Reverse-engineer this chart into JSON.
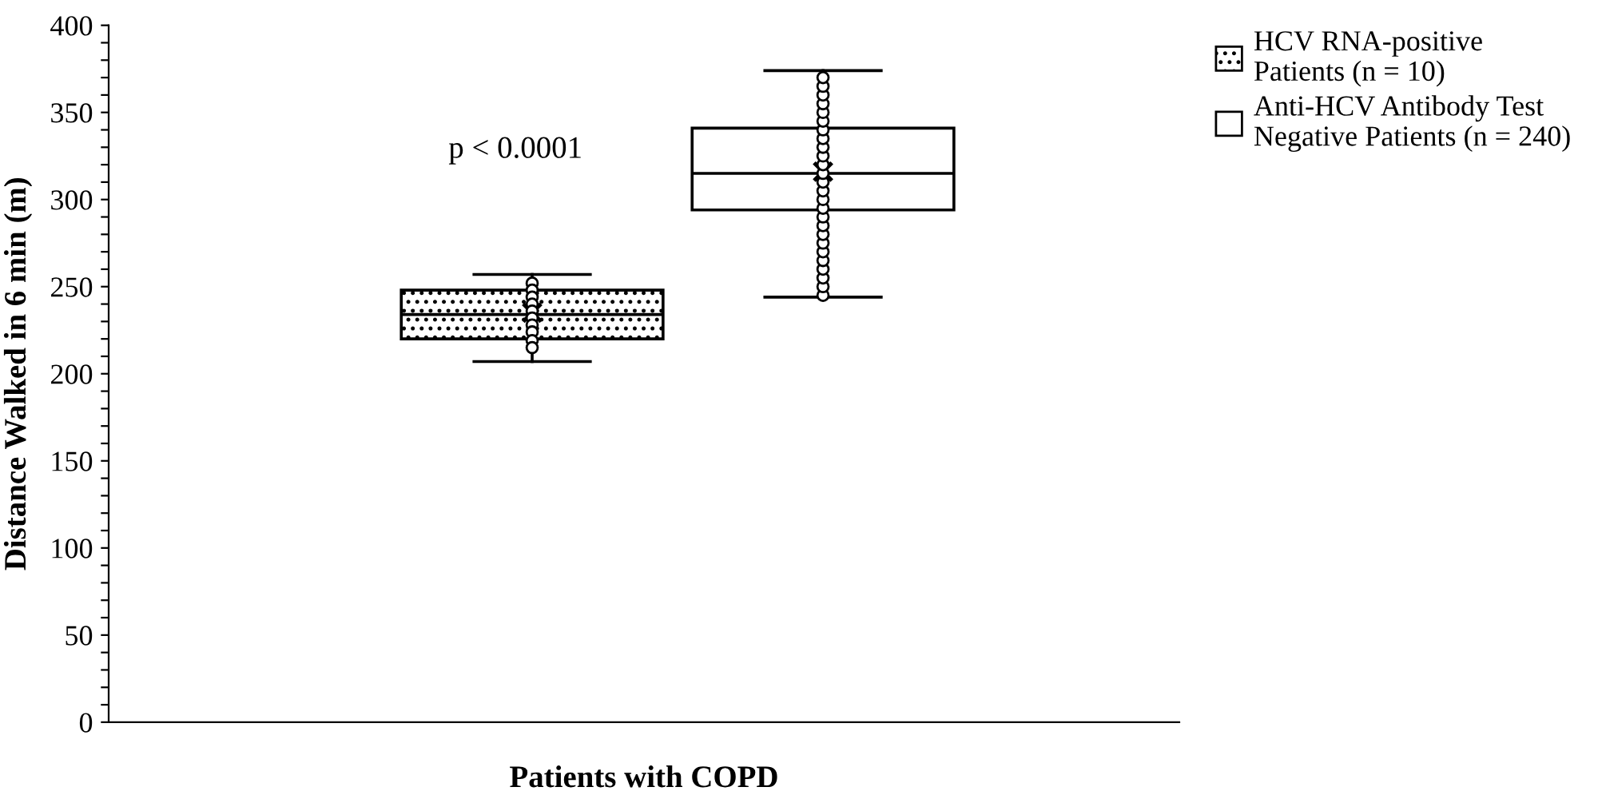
{
  "chart_data": {
    "type": "box",
    "xlabel": "Patients with COPD",
    "ylabel": "Distance Walked in 6 min (m)",
    "categories": [
      null
    ],
    "series": [
      {
        "name": "HCV RNA-positive\nPatients (n = 10)",
        "color": "#000000",
        "boxes": [
          {
            "low": 207,
            "q1": 220,
            "median": 234,
            "q3": 248,
            "high": 257,
            "mean": 235,
            "outliers": [
              252,
              248,
              244,
              240,
              236,
              232,
              228,
              224,
              219,
              215
            ]
          }
        ]
      },
      {
        "name": "Anti-HCV Antibody Test\nNegative Patients (n = 240)",
        "color": "#000000",
        "boxes": [
          {
            "low": 244,
            "q1": 294,
            "median": 315,
            "q3": 341,
            "high": 374,
            "mean": 316,
            "outliers": [
              245,
              250,
              255,
              260,
              265,
              270,
              275,
              280,
              285,
              290,
              295,
              300,
              305,
              310,
              315,
              320,
              325,
              330,
              335,
              340,
              345,
              350,
              355,
              360,
              365,
              370
            ]
          }
        ]
      }
    ],
    "ylim": [
      0,
      400
    ],
    "yticks": [
      0,
      {
        "value": 10,
        "label": null
      },
      {
        "value": 20,
        "label": null
      },
      {
        "value": 30,
        "label": null
      },
      {
        "value": 40,
        "label": null
      },
      50,
      {
        "value": 60,
        "label": null
      },
      {
        "value": 70,
        "label": null
      },
      {
        "value": 80,
        "label": null
      },
      {
        "value": 90,
        "label": null
      },
      100,
      {
        "value": 110,
        "label": null
      },
      {
        "value": 120,
        "label": null
      },
      {
        "value": 130,
        "label": null
      },
      {
        "value": 140,
        "label": null
      },
      150,
      {
        "value": 160,
        "label": null
      },
      {
        "value": 170,
        "label": null
      },
      {
        "value": 180,
        "label": null
      },
      {
        "value": 190,
        "label": null
      },
      200,
      {
        "value": 210,
        "label": null
      },
      {
        "value": 220,
        "label": null
      },
      {
        "value": 230,
        "label": null
      },
      {
        "value": 240,
        "label": null
      },
      250,
      {
        "value": 260,
        "label": null
      },
      {
        "value": 270,
        "label": null
      },
      {
        "value": 280,
        "label": null
      },
      {
        "value": 290,
        "label": null
      },
      300,
      {
        "value": 310,
        "label": null
      },
      {
        "value": 320,
        "label": null
      },
      {
        "value": 330,
        "label": null
      },
      {
        "value": 340,
        "label": null
      },
      350,
      {
        "value": 360,
        "label": null
      },
      {
        "value": 370,
        "label": null
      },
      {
        "value": 380,
        "label": null
      },
      {
        "value": 390,
        "label": null
      },
      400
    ],
    "annotations": [
      "p < 0.0001"
    ],
    "grid": false,
    "legend": "top right",
    "marker": "circle"
  }
}
